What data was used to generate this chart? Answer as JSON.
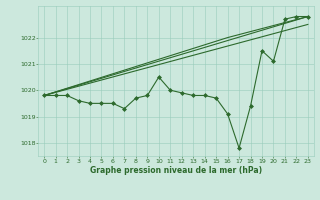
{
  "bg_color": "#cce8dd",
  "line_color": "#2d6a2d",
  "grid_color": "#99ccbb",
  "xlabel": "Graphe pression niveau de la mer (hPa)",
  "xlim": [
    -0.5,
    23.5
  ],
  "ylim": [
    1017.5,
    1023.2
  ],
  "yticks": [
    1018,
    1019,
    1020,
    1021,
    1022
  ],
  "xticks": [
    0,
    1,
    2,
    3,
    4,
    5,
    6,
    7,
    8,
    9,
    10,
    11,
    12,
    13,
    14,
    15,
    16,
    17,
    18,
    19,
    20,
    21,
    22,
    23
  ],
  "series": [
    {
      "x": [
        0,
        1,
        2,
        3,
        4,
        5,
        6,
        7,
        8,
        9,
        10,
        11,
        12,
        13,
        14,
        15,
        16,
        17,
        18,
        19,
        20,
        21,
        22,
        23
      ],
      "y": [
        1019.8,
        1019.8,
        1019.8,
        1019.6,
        1019.5,
        1019.5,
        1019.5,
        1019.3,
        1019.7,
        1019.8,
        1020.5,
        1020.0,
        1019.9,
        1019.8,
        1019.8,
        1019.7,
        1019.1,
        1017.8,
        1019.4,
        1021.5,
        1021.1,
        1022.7,
        1022.8,
        1022.8
      ],
      "marker": "D",
      "markersize": 2.0,
      "linewidth": 0.8
    },
    {
      "x": [
        0,
        23
      ],
      "y": [
        1019.8,
        1022.5
      ],
      "marker": null,
      "markersize": 0,
      "linewidth": 0.8
    },
    {
      "x": [
        0,
        23
      ],
      "y": [
        1019.8,
        1022.8
      ],
      "marker": null,
      "markersize": 0,
      "linewidth": 0.8
    },
    {
      "x": [
        0,
        16,
        23
      ],
      "y": [
        1019.8,
        1022.0,
        1022.8
      ],
      "marker": null,
      "markersize": 0,
      "linewidth": 0.8
    }
  ]
}
